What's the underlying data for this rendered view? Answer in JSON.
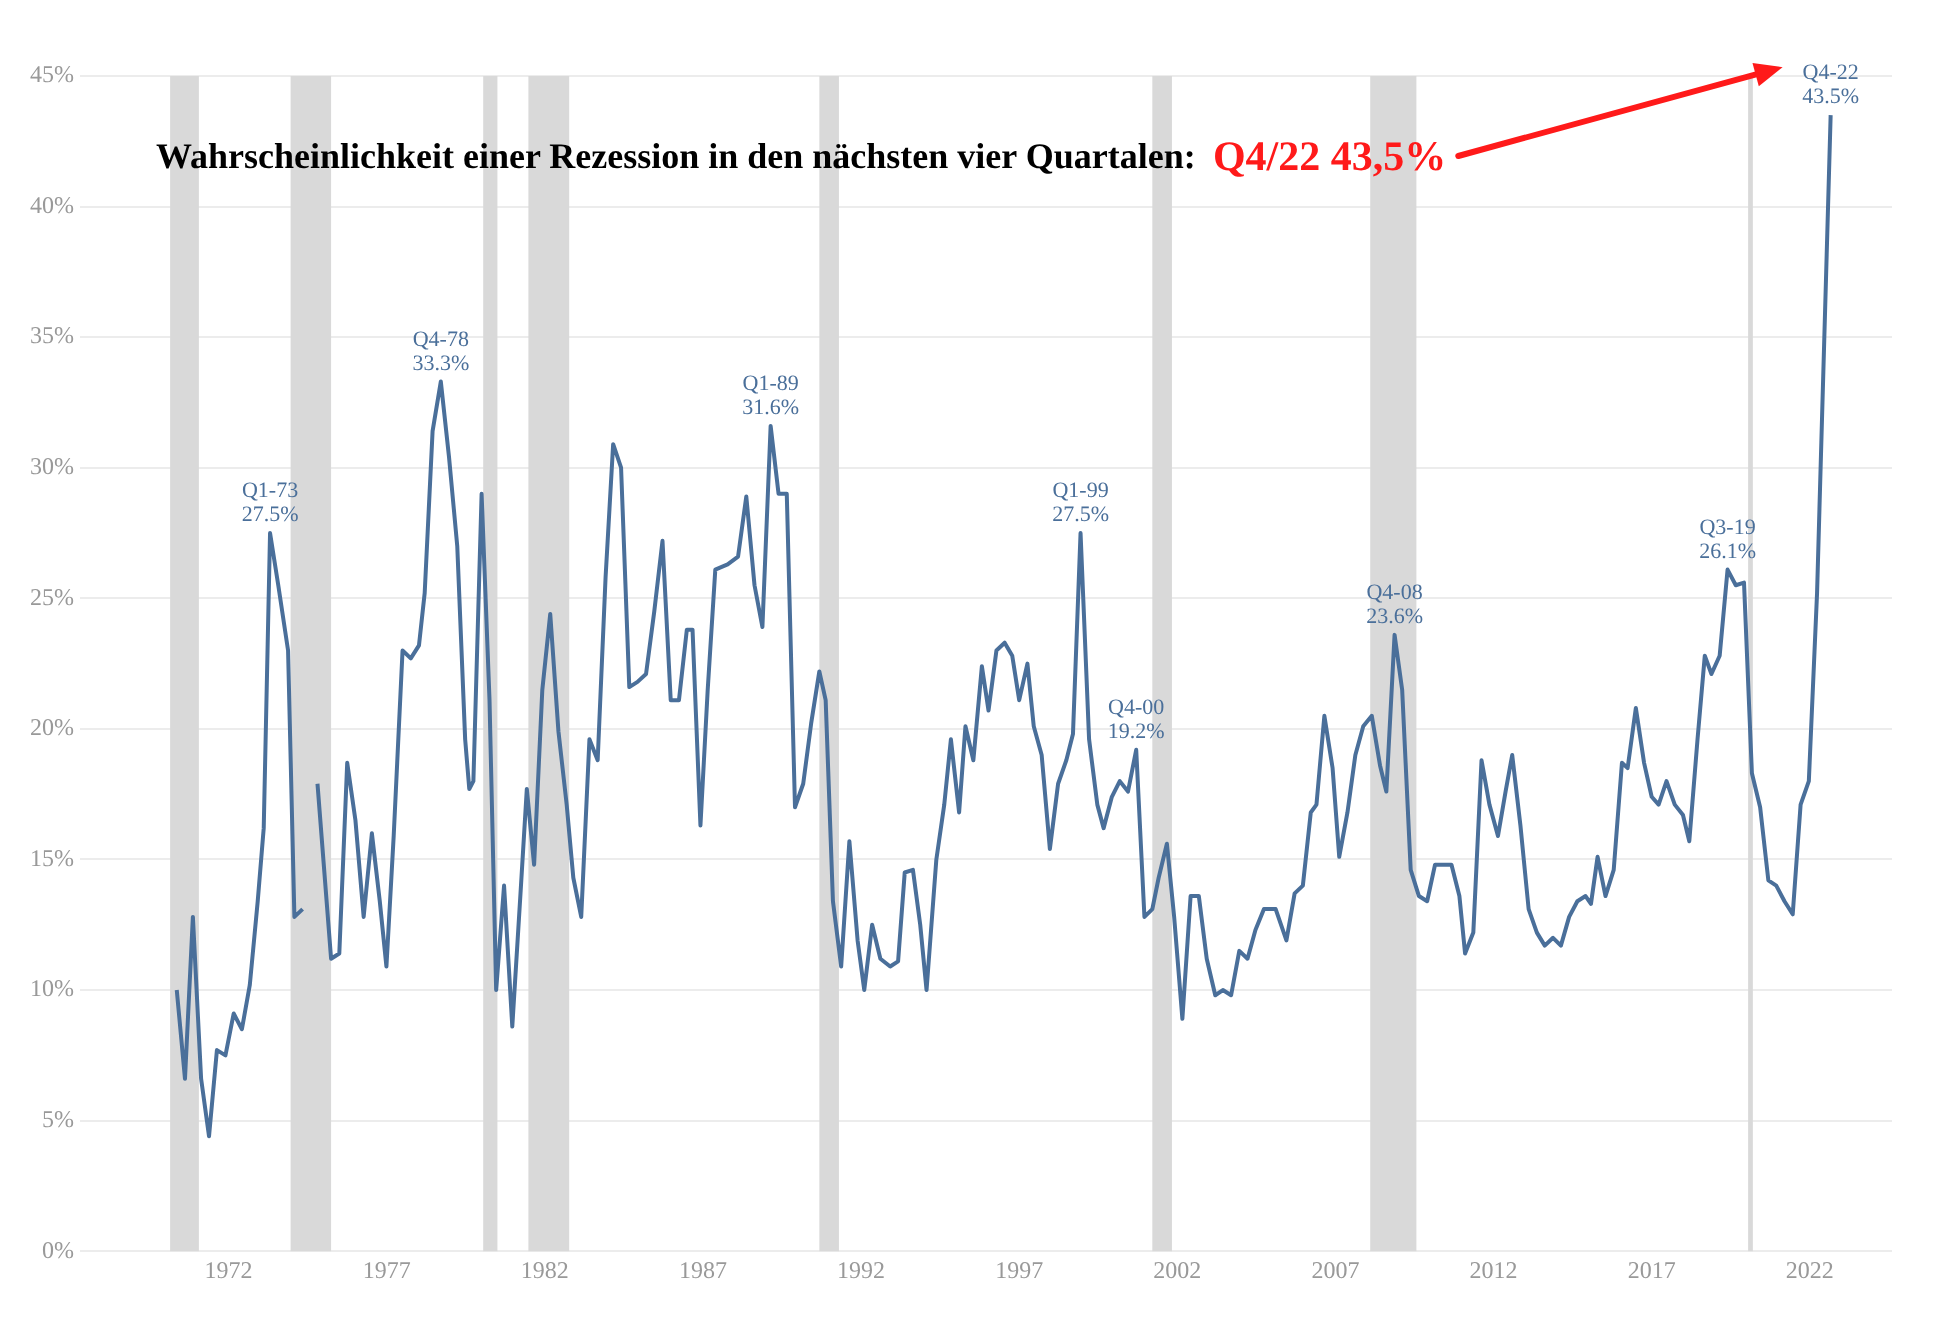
{
  "chart_data": {
    "type": "line",
    "title": "Wahrscheinlichkeit einer Rezession in den nächsten vier Quartalen:",
    "annotations": [
      "Q4/22 43,5%",
      {
        "text": "Q1-73\n27.5%",
        "x": 1973.31,
        "y": 27.5
      },
      {
        "text": "Q4-78\n33.3%",
        "x": 1978.71,
        "y": 33.3
      },
      {
        "text": "Q1-89\n31.6%",
        "x": 1989.14,
        "y": 31.6
      },
      {
        "text": "Q1-99\n27.5%",
        "x": 1998.94,
        "y": 27.5
      },
      {
        "text": "Q4-00\n19.2%",
        "x": 2000.7,
        "y": 19.2
      },
      {
        "text": "Q4-08\n23.6%",
        "x": 2008.87,
        "y": 23.6
      },
      {
        "text": "Q3-19\n26.1%",
        "x": 2019.4,
        "y": 26.1
      },
      {
        "text": "Q4-22\n43.5%",
        "x": 2022.66,
        "y": 43.5
      }
    ],
    "x": [
      1970.36,
      1970.62,
      1970.87,
      1971.13,
      1971.38,
      1971.63,
      1971.9,
      1972.16,
      1972.42,
      1972.67,
      1972.92,
      1973.11,
      1973.31,
      1973.57,
      1973.88,
      1974.08,
      1974.34,
      1974.6,
      1974.81,
      1975.24,
      1975.5,
      1975.75,
      1976.01,
      1976.27,
      1976.53,
      1976.78,
      1976.99,
      1977.22,
      1977.5,
      1977.76,
      1978.02,
      1978.2,
      1978.45,
      1978.71,
      1978.97,
      1979.23,
      1979.48,
      1979.61,
      1979.74,
      1980.0,
      1980.25,
      1980.46,
      1980.71,
      1980.97,
      1981.23,
      1981.43,
      1981.66,
      1981.92,
      1982.17,
      1982.43,
      1982.69,
      1982.9,
      1983.15,
      1983.41,
      1983.67,
      1983.92,
      1984.16,
      1984.41,
      1984.67,
      1984.93,
      1985.2,
      1985.46,
      1985.72,
      1985.98,
      1986.24,
      1986.49,
      1986.67,
      1986.92,
      1987.15,
      1987.39,
      1987.78,
      1988.11,
      1988.37,
      1988.63,
      1988.88,
      1989.14,
      1989.39,
      1989.65,
      1989.91,
      1990.17,
      1990.42,
      1990.68,
      1990.88,
      1991.11,
      1991.37,
      1991.63,
      1991.89,
      1992.1,
      1992.35,
      1992.61,
      1992.92,
      1993.17,
      1993.38,
      1993.64,
      1993.87,
      1994.07,
      1994.38,
      1994.63,
      1994.84,
      1995.1,
      1995.3,
      1995.55,
      1995.82,
      1996.03,
      1996.28,
      1996.54,
      1996.78,
      1997.0,
      1997.26,
      1997.46,
      1997.71,
      1997.97,
      1998.23,
      1998.49,
      1998.7,
      1998.94,
      1999.21,
      1999.47,
      1999.67,
      1999.93,
      2000.18,
      2000.44,
      2000.7,
      2000.96,
      2001.21,
      2001.41,
      2001.67,
      2001.9,
      2002.16,
      2002.42,
      2002.68,
      2002.93,
      2003.2,
      2003.44,
      2003.7,
      2003.96,
      2004.22,
      2004.47,
      2004.74,
      2005.11,
      2005.45,
      2005.71,
      2005.97,
      2006.22,
      2006.4,
      2006.65,
      2006.91,
      2007.12,
      2007.38,
      2007.63,
      2007.88,
      2008.15,
      2008.41,
      2008.61,
      2008.87,
      2009.11,
      2009.38,
      2009.64,
      2009.9,
      2010.15,
      2010.41,
      2010.67,
      2010.92,
      2011.1,
      2011.36,
      2011.62,
      2011.87,
      2012.14,
      2012.38,
      2012.59,
      2012.85,
      2013.11,
      2013.37,
      2013.62,
      2013.88,
      2014.13,
      2014.39,
      2014.65,
      2014.91,
      2015.08,
      2015.29,
      2015.54,
      2015.8,
      2016.06,
      2016.24,
      2016.5,
      2016.76,
      2017.0,
      2017.22,
      2017.47,
      2017.73,
      2017.99,
      2018.19,
      2018.45,
      2018.68,
      2018.89,
      2019.15,
      2019.4,
      2019.66,
      2019.92,
      2020.17,
      2020.43,
      2020.69,
      2020.94,
      2021.2,
      2021.46,
      2021.71,
      2021.97,
      2022.23,
      2022.66
    ],
    "series": [
      {
        "color": "#4a6f9a",
        "values": [
          10.0,
          6.6,
          12.8,
          6.6,
          4.4,
          7.7,
          7.5,
          9.1,
          8.5,
          10.2,
          13.4,
          16.2,
          27.5,
          25.5,
          23.0,
          12.8,
          13.1,
          null,
          17.9,
          11.2,
          11.4,
          18.7,
          16.5,
          12.8,
          16.0,
          13.4,
          10.9,
          15.9,
          23.0,
          22.7,
          23.2,
          25.2,
          31.4,
          33.3,
          30.4,
          27.0,
          19.6,
          17.7,
          18.0,
          29.0,
          21.1,
          10.0,
          14.0,
          8.6,
          13.7,
          17.7,
          14.8,
          21.5,
          24.4,
          19.9,
          17.1,
          14.3,
          12.8,
          19.6,
          18.8,
          25.8,
          30.9,
          30.0,
          21.6,
          21.8,
          22.1,
          24.5,
          27.2,
          21.1,
          21.1,
          23.8,
          23.8,
          16.3,
          21.5,
          26.1,
          26.3,
          26.6,
          28.9,
          25.5,
          23.9,
          31.6,
          29.0,
          29.0,
          17.0,
          17.9,
          20.2,
          22.2,
          21.1,
          13.4,
          10.9,
          15.7,
          11.9,
          10.0,
          12.5,
          11.2,
          10.9,
          11.1,
          14.5,
          14.6,
          12.5,
          10.0,
          15.0,
          17.1,
          19.6,
          16.8,
          20.1,
          18.8,
          22.4,
          20.7,
          23.0,
          23.3,
          22.8,
          21.1,
          22.5,
          20.1,
          19.0,
          15.4,
          17.9,
          18.8,
          19.8,
          27.5,
          19.6,
          17.1,
          16.2,
          17.4,
          18.0,
          17.6,
          19.2,
          12.8,
          13.1,
          14.3,
          15.6,
          12.8,
          8.9,
          13.6,
          13.6,
          11.2,
          9.8,
          10.0,
          9.8,
          11.5,
          11.2,
          12.3,
          13.1,
          13.1,
          11.9,
          13.7,
          14.0,
          16.8,
          17.1,
          20.5,
          18.5,
          15.1,
          16.8,
          19.0,
          20.1,
          20.5,
          18.6,
          17.6,
          23.6,
          21.5,
          14.6,
          13.6,
          13.4,
          14.8,
          14.8,
          14.8,
          13.6,
          11.4,
          12.2,
          18.8,
          17.1,
          15.9,
          17.6,
          19.0,
          16.3,
          13.1,
          12.2,
          11.7,
          12.0,
          11.7,
          12.8,
          13.4,
          13.6,
          13.3,
          15.1,
          13.6,
          14.6,
          18.7,
          18.5,
          20.8,
          18.7,
          17.4,
          17.1,
          18.0,
          17.1,
          16.7,
          15.7,
          19.6,
          22.8,
          22.1,
          22.8,
          26.1,
          25.5,
          25.6,
          18.3,
          17.0,
          14.2,
          14.0,
          13.4,
          12.9,
          17.1,
          18.0,
          25.2,
          43.5
        ]
      }
    ],
    "bands": [
      {
        "axis": "x",
        "from": 1970.15,
        "to": 1971.06,
        "color": "#d9d9d9"
      },
      {
        "axis": "x",
        "from": 1973.96,
        "to": 1975.24,
        "color": "#d9d9d9"
      },
      {
        "axis": "x",
        "from": 1980.05,
        "to": 1980.5,
        "color": "#d9d9d9"
      },
      {
        "axis": "x",
        "from": 1981.48,
        "to": 1982.77,
        "color": "#d9d9d9"
      },
      {
        "axis": "x",
        "from": 1990.68,
        "to": 1991.3,
        "color": "#d9d9d9"
      },
      {
        "axis": "x",
        "from": 2001.21,
        "to": 2001.83,
        "color": "#d9d9d9"
      },
      {
        "axis": "x",
        "from": 2008.1,
        "to": 2009.56,
        "color": "#d9d9d9"
      },
      {
        "axis": "x",
        "from": 2020.05,
        "to": 2020.2,
        "color": "#d9d9d9"
      }
    ],
    "xlim": [
      1967.3,
      2024.6
    ],
    "xticks": [
      1972,
      1977,
      1982,
      1987,
      1992,
      1997,
      2002,
      2007,
      2012,
      2017,
      2022
    ],
    "ylim": [
      0,
      45
    ],
    "yticks": [
      {
        "value": 0,
        "label": "0%"
      },
      {
        "value": 5,
        "label": "5%"
      },
      {
        "value": 10,
        "label": "10%"
      },
      {
        "value": 15,
        "label": "15%"
      },
      {
        "value": 20,
        "label": "20%"
      },
      {
        "value": 25,
        "label": "25%"
      },
      {
        "value": 30,
        "label": "30%"
      },
      {
        "value": 35,
        "label": "35%"
      },
      {
        "value": 40,
        "label": "40%"
      },
      {
        "value": 45,
        "label": "45%"
      }
    ],
    "grid": "y"
  }
}
